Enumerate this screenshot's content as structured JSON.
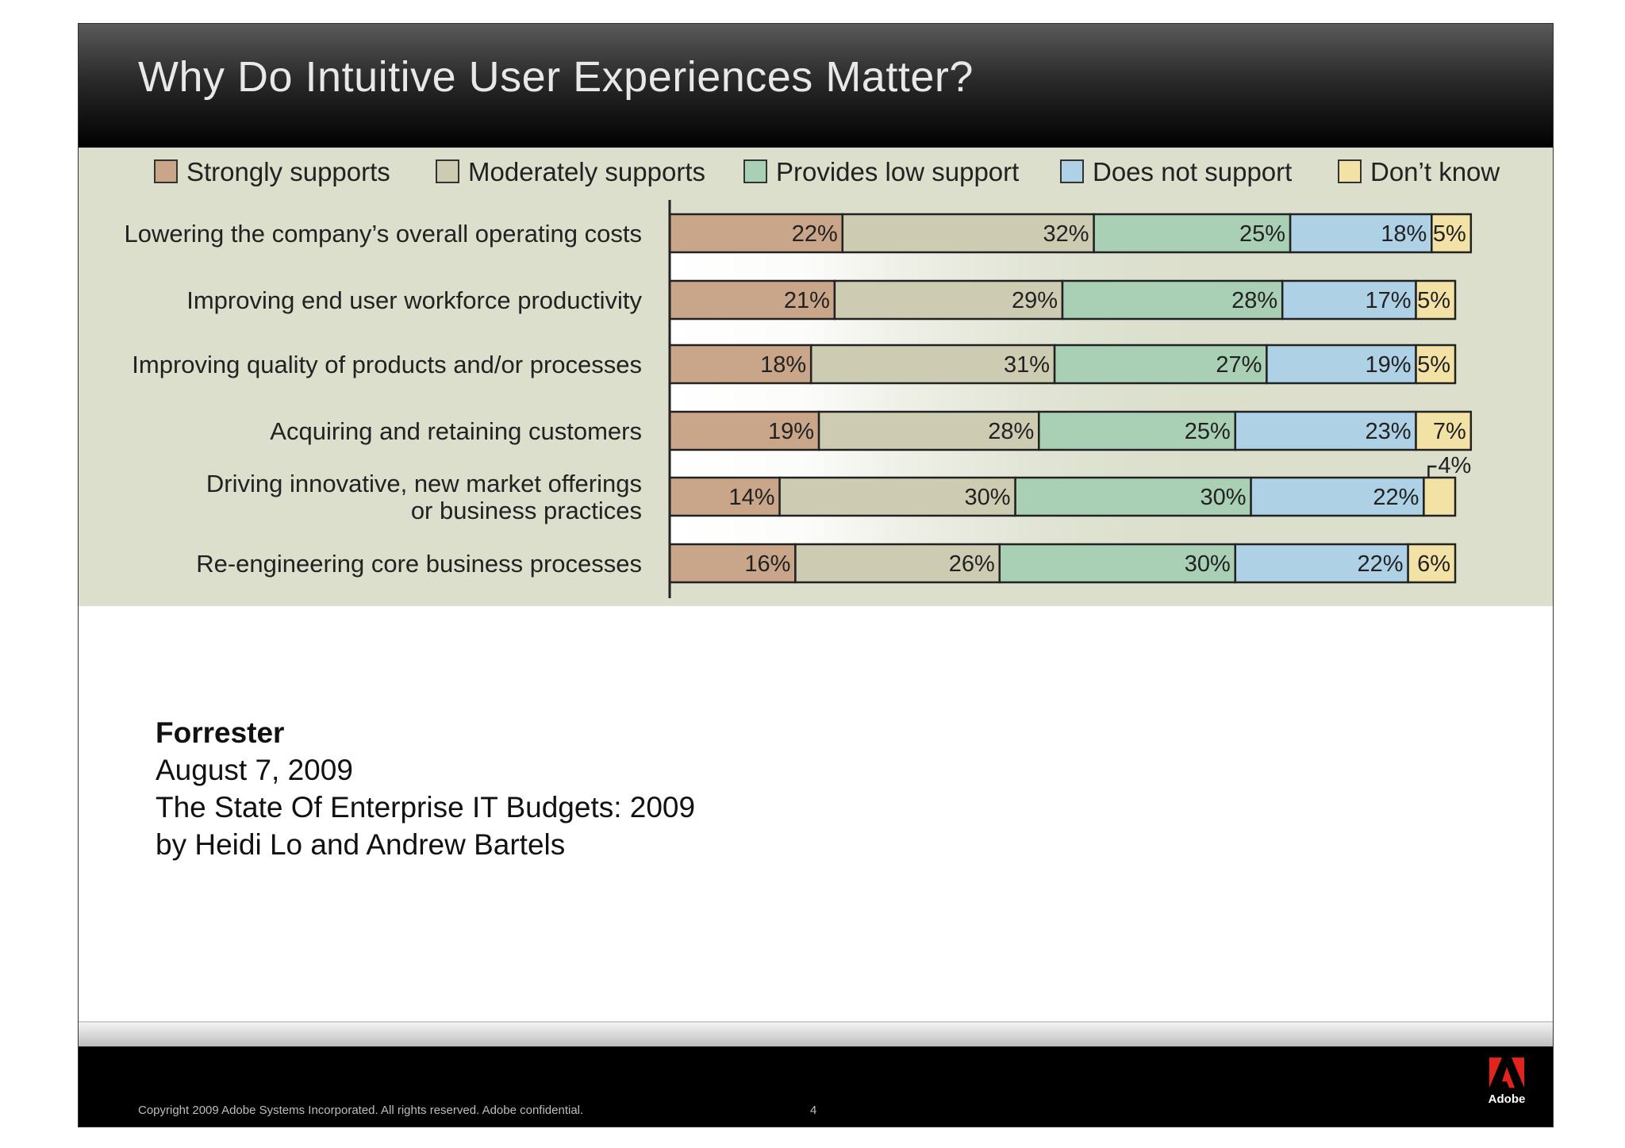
{
  "slide": {
    "title": "Why Do Intuitive User Experiences Matter?"
  },
  "chart_data": {
    "type": "bar",
    "orientation": "horizontal",
    "stacked": true,
    "title": "",
    "xlabel": "",
    "ylabel": "",
    "xlim": [
      0,
      100
    ],
    "grid": false,
    "legend_position": "top",
    "categories": [
      "Lowering the company’s overall operating costs",
      "Improving end user workforce productivity",
      "Improving quality of products and/or processes",
      "Acquiring and retaining customers",
      "Driving innovative, new market offerings or business practices",
      "Re-engineering core business processes"
    ],
    "category_lines": [
      [
        "Lowering the company’s overall operating costs"
      ],
      [
        "Improving end user workforce productivity"
      ],
      [
        "Improving quality of products and/or processes"
      ],
      [
        "Acquiring and retaining customers"
      ],
      [
        "Driving innovative, new market offerings",
        "or business practices"
      ],
      [
        "Re-engineering core business processes"
      ]
    ],
    "series": [
      {
        "name": "Strongly supports",
        "color": "#c9a589",
        "values": [
          22,
          21,
          18,
          19,
          14,
          16
        ]
      },
      {
        "name": "Moderately supports",
        "color": "#cdcbb1",
        "values": [
          32,
          29,
          31,
          28,
          30,
          26
        ]
      },
      {
        "name": "Provides low support",
        "color": "#a9cfb5",
        "values": [
          25,
          28,
          27,
          25,
          30,
          30
        ]
      },
      {
        "name": "Does not support",
        "color": "#aed1e6",
        "values": [
          18,
          17,
          19,
          23,
          22,
          22
        ]
      },
      {
        "name": "Don’t know",
        "color": "#f3e2a6",
        "values": [
          5,
          5,
          5,
          7,
          4,
          6
        ]
      }
    ],
    "data_labels": [
      [
        "22%",
        "32%",
        "25%",
        "18%",
        "5%"
      ],
      [
        "21%",
        "29%",
        "28%",
        "17%",
        "5%"
      ],
      [
        "18%",
        "31%",
        "27%",
        "19%",
        "5%"
      ],
      [
        "19%",
        "28%",
        "25%",
        "23%",
        "7%"
      ],
      [
        "14%",
        "30%",
        "30%",
        "22%",
        "4%"
      ],
      [
        "16%",
        "26%",
        "30%",
        "22%",
        "6%"
      ]
    ],
    "callout_labels": [
      {
        "row": 4,
        "series": 4,
        "text": "4%"
      }
    ]
  },
  "source": {
    "organization": "Forrester",
    "date": "August 7, 2009",
    "report_title": "The State Of Enterprise IT Budgets: 2009",
    "authors": "by Heidi Lo and Andrew Bartels"
  },
  "footer": {
    "copyright": "Copyright 2009 Adobe Systems Incorporated.  All rights reserved.  Adobe confidential.",
    "page_number": "4",
    "logo_text": "Adobe",
    "logo_color": "#e4231b"
  }
}
